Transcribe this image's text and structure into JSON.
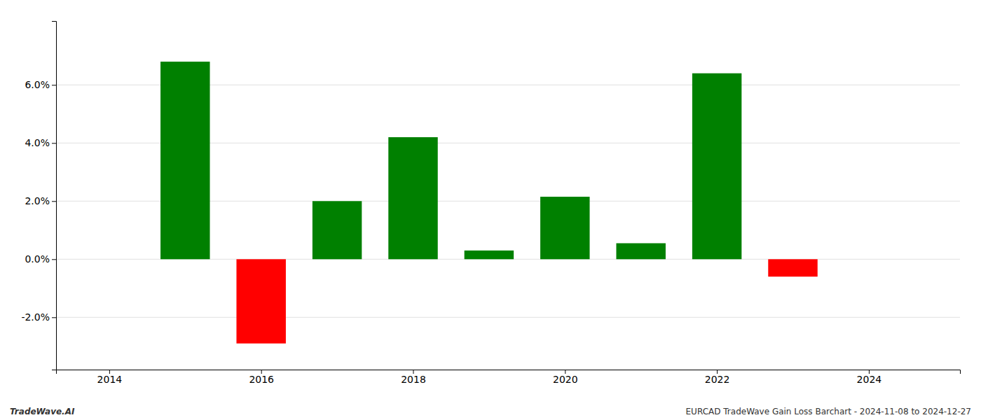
{
  "chart_data": {
    "type": "bar",
    "x": [
      2015,
      2016,
      2017,
      2018,
      2019,
      2020,
      2021,
      2022,
      2023
    ],
    "values": [
      0.068,
      -0.029,
      0.02,
      0.042,
      0.003,
      0.0215,
      0.0055,
      0.064,
      -0.006
    ],
    "colors": [
      "#008000",
      "#ff0000",
      "#008000",
      "#008000",
      "#008000",
      "#008000",
      "#008000",
      "#008000",
      "#ff0000"
    ],
    "xlim": [
      2013.3,
      2025.2
    ],
    "xticks": [
      2014,
      2016,
      2018,
      2020,
      2022,
      2024
    ],
    "ylim": [
      -0.038,
      0.082
    ],
    "yticks": [
      {
        "value": -0.02,
        "label": "-2.0%"
      },
      {
        "value": 0.0,
        "label": "0.0%"
      },
      {
        "value": 0.02,
        "label": "2.0%"
      },
      {
        "value": 0.04,
        "label": "4.0%"
      },
      {
        "value": 0.06,
        "label": "6.0%"
      }
    ],
    "grid": true,
    "annotations": [
      "TradeWave.AI",
      "EURCAD TradeWave Gain Loss Barchart - 2024-11-08 to 2024-12-27"
    ]
  }
}
